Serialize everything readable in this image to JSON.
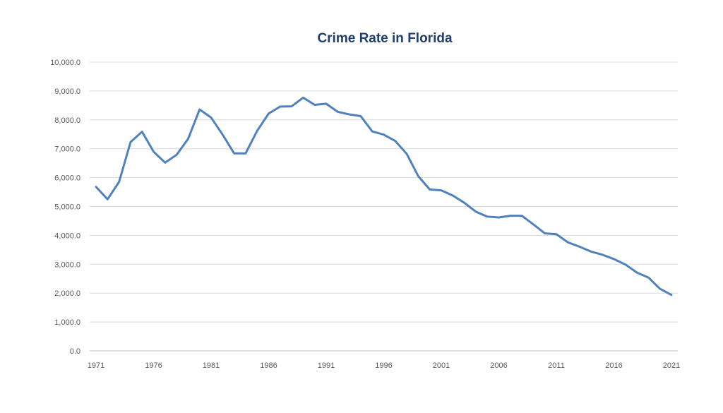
{
  "chart_data": {
    "type": "line",
    "title": "Crime Rate in Florida",
    "xlabel": "",
    "ylabel": "",
    "ylim": [
      0,
      10000
    ],
    "xlim": [
      1971,
      2021
    ],
    "grid": true,
    "legend": "none",
    "y_ticks": [
      "0.0",
      "1,000.0",
      "2,000.0",
      "3,000.0",
      "4,000.0",
      "5,000.0",
      "6,000.0",
      "7,000.0",
      "8,000.0",
      "9,000.0",
      "10,000.0"
    ],
    "x_ticks": [
      "1971",
      "1976",
      "1981",
      "1986",
      "1991",
      "1996",
      "2001",
      "2006",
      "2011",
      "2016",
      "2021"
    ],
    "series_color": "#4f81bd",
    "series": [
      {
        "x": [
          1971,
          1972,
          1973,
          1974,
          1975,
          1976,
          1977,
          1978,
          1979,
          1980,
          1981,
          1982,
          1983,
          1984,
          1985,
          1986,
          1987,
          1988,
          1989,
          1990,
          1991,
          1992,
          1993,
          1994,
          1995,
          1996,
          1997,
          1998,
          1999,
          2000,
          2001,
          2002,
          2003,
          2004,
          2005,
          2006,
          2007,
          2008,
          2009,
          2010,
          2011,
          2012,
          2013,
          2014,
          2015,
          2016,
          2017,
          2018,
          2019,
          2020,
          2021
        ],
        "values": [
          5680,
          5250,
          5850,
          7230,
          7590,
          6900,
          6520,
          6790,
          7340,
          8360,
          8080,
          7490,
          6840,
          6840,
          7620,
          8220,
          8460,
          8470,
          8770,
          8520,
          8560,
          8280,
          8190,
          8130,
          7600,
          7490,
          7270,
          6820,
          6050,
          5590,
          5560,
          5380,
          5130,
          4820,
          4650,
          4620,
          4680,
          4680,
          4380,
          4070,
          4040,
          3760,
          3610,
          3440,
          3330,
          3180,
          2990,
          2710,
          2540,
          2150,
          1940
        ]
      }
    ]
  }
}
